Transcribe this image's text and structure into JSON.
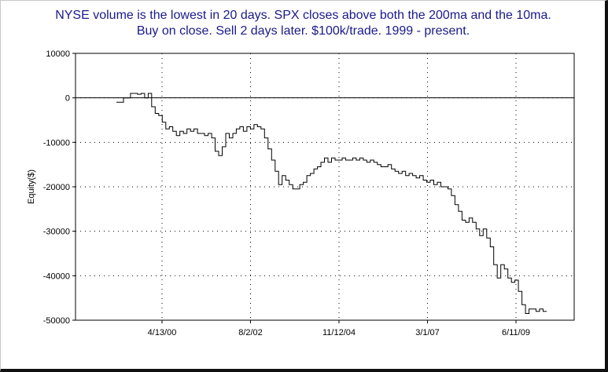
{
  "chart_data": {
    "type": "line",
    "title_lines": [
      "NYSE volume is the lowest in 20 days. SPX closes above both the 200ma and the 10ma.",
      "Buy on close. Sell 2 days later. $100k/trade. 1999 - present."
    ],
    "ylabel": "Equity($)",
    "xlabel": "",
    "ylim": [
      -50000,
      10000
    ],
    "yticks": [
      10000,
      0,
      -10000,
      -20000,
      -30000,
      -40000,
      -50000
    ],
    "ytick_labels": [
      "10000",
      "0",
      "-10000",
      "-20000",
      "-30000",
      "-40000",
      "-50000"
    ],
    "x_tick_labels": [
      "4/13/00",
      "8/2/02",
      "11/12/04",
      "3/1/07",
      "6/11/09"
    ],
    "grid": true,
    "line_color": "#000000",
    "zero_line": true,
    "series": [
      {
        "values": [
          -1000,
          -1000,
          0,
          0,
          1000,
          1000,
          800,
          1000,
          0,
          1000,
          -2000,
          -3500,
          -4000,
          -5500,
          -7000,
          -6500,
          -7500,
          -8500,
          -7500,
          -8000,
          -7000,
          -7500,
          -7000,
          -8000,
          -8000,
          -8500,
          -8000,
          -9000,
          -12000,
          -13000,
          -11000,
          -8000,
          -9000,
          -8000,
          -7000,
          -6500,
          -7500,
          -6500,
          -7000,
          -6000,
          -6500,
          -7000,
          -9000,
          -11500,
          -14000,
          -16500,
          -19500,
          -17500,
          -18500,
          -19500,
          -20500,
          -20500,
          -19500,
          -19000,
          -17500,
          -17000,
          -16000,
          -15500,
          -14500,
          -13500,
          -14500,
          -13500,
          -14000,
          -14000,
          -13500,
          -14000,
          -14000,
          -13500,
          -14000,
          -13500,
          -14000,
          -14500,
          -14000,
          -14500,
          -15000,
          -15500,
          -15500,
          -15000,
          -16000,
          -16500,
          -17000,
          -16500,
          -17500,
          -17000,
          -17500,
          -18000,
          -17500,
          -18500,
          -19000,
          -18500,
          -19500,
          -19000,
          -20000,
          -20000,
          -20500,
          -22000,
          -24000,
          -25500,
          -27500,
          -28000,
          -27000,
          -28000,
          -29500,
          -31000,
          -29500,
          -31500,
          -33500,
          -37500,
          -40500,
          -37500,
          -38500,
          -40500,
          -41500,
          -41000,
          -43500,
          -46500,
          -48500,
          -47500,
          -47500,
          -48000,
          -47500,
          -48000,
          -48000
        ]
      }
    ]
  }
}
